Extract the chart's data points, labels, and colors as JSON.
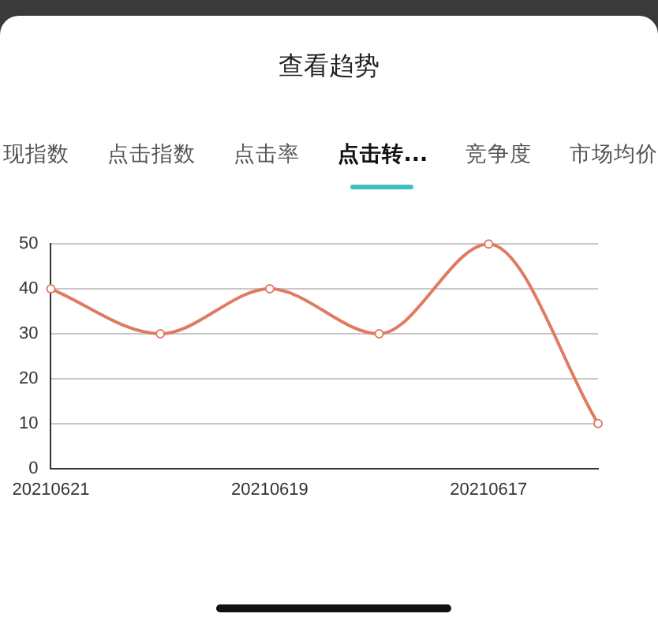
{
  "chart_data": {
    "type": "line",
    "title": "查看趋势",
    "annotations": [
      "现指数",
      "点击指数",
      "点击率",
      "点击转...",
      "竞争度",
      "市场均价"
    ],
    "categories": [
      "20210621",
      null,
      "20210619",
      null,
      "20210617",
      null
    ],
    "series": [
      {
        "color": "#e07b62",
        "values": [
          40,
          30,
          40,
          30,
          50,
          10
        ]
      }
    ],
    "ylim": [
      0,
      50
    ],
    "yticks": [
      0,
      10,
      20,
      30,
      40,
      50
    ],
    "grid": "y",
    "legend": false,
    "marker": "circle",
    "line_style": "solid"
  }
}
